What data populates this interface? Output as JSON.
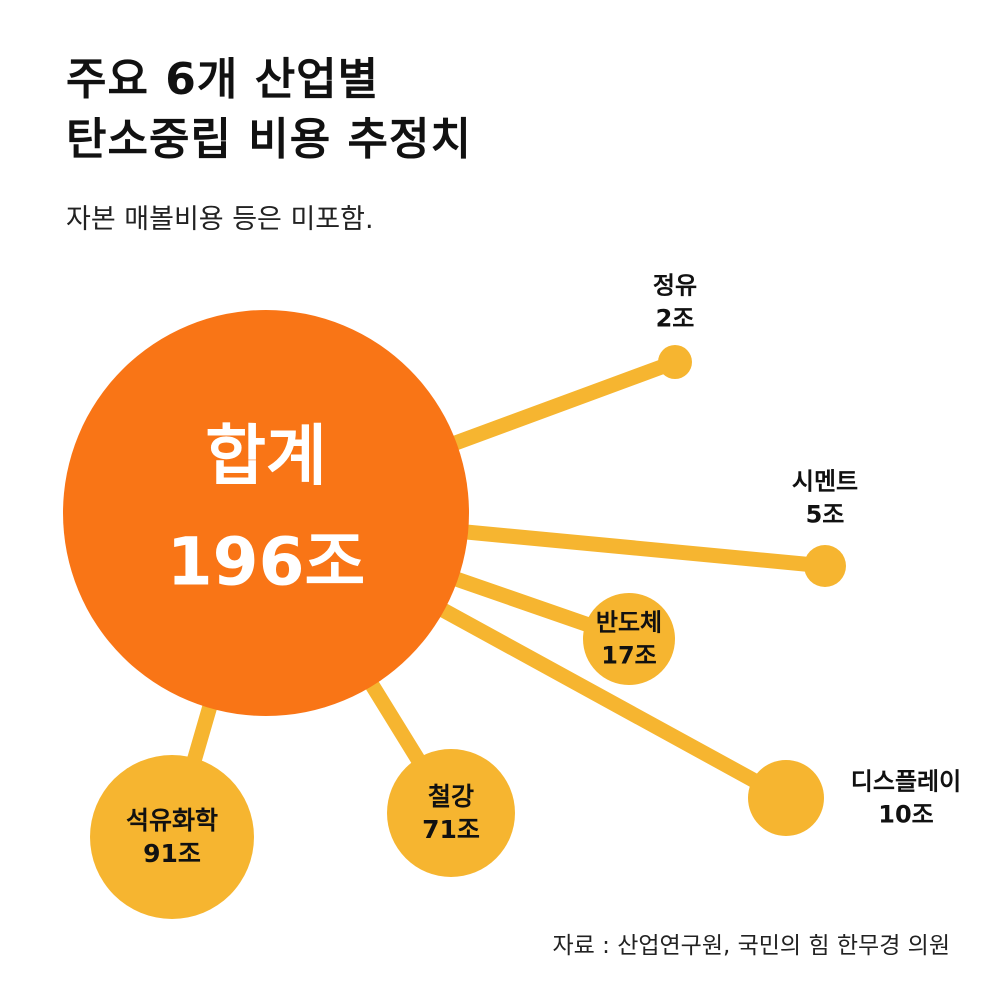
{
  "title_lines": [
    "주요 6개 산업별",
    "탄소중립 비용 추정치"
  ],
  "subtitle": "자본 매볼비용 등은 미포함.",
  "source": "자료 : 산업연구원, 국민의 힘 한무경 의원",
  "colors": {
    "total": "#F97516",
    "branch": "#F6B530",
    "total_text": "#FFFFFF",
    "label_text": "#111111"
  },
  "chart_data": {
    "type": "bubble",
    "unit": "조",
    "total": {
      "name": "합계",
      "value": 196,
      "label": "196조"
    },
    "items": [
      {
        "name": "석유화학",
        "value": 91,
        "label": "91조"
      },
      {
        "name": "철강",
        "value": 71,
        "label": "71조"
      },
      {
        "name": "반도체",
        "value": 17,
        "label": "17조"
      },
      {
        "name": "디스플레이",
        "value": 10,
        "label": "10조"
      },
      {
        "name": "시멘트",
        "value": 5,
        "label": "5조"
      },
      {
        "name": "정유",
        "value": 2,
        "label": "2조"
      }
    ]
  }
}
